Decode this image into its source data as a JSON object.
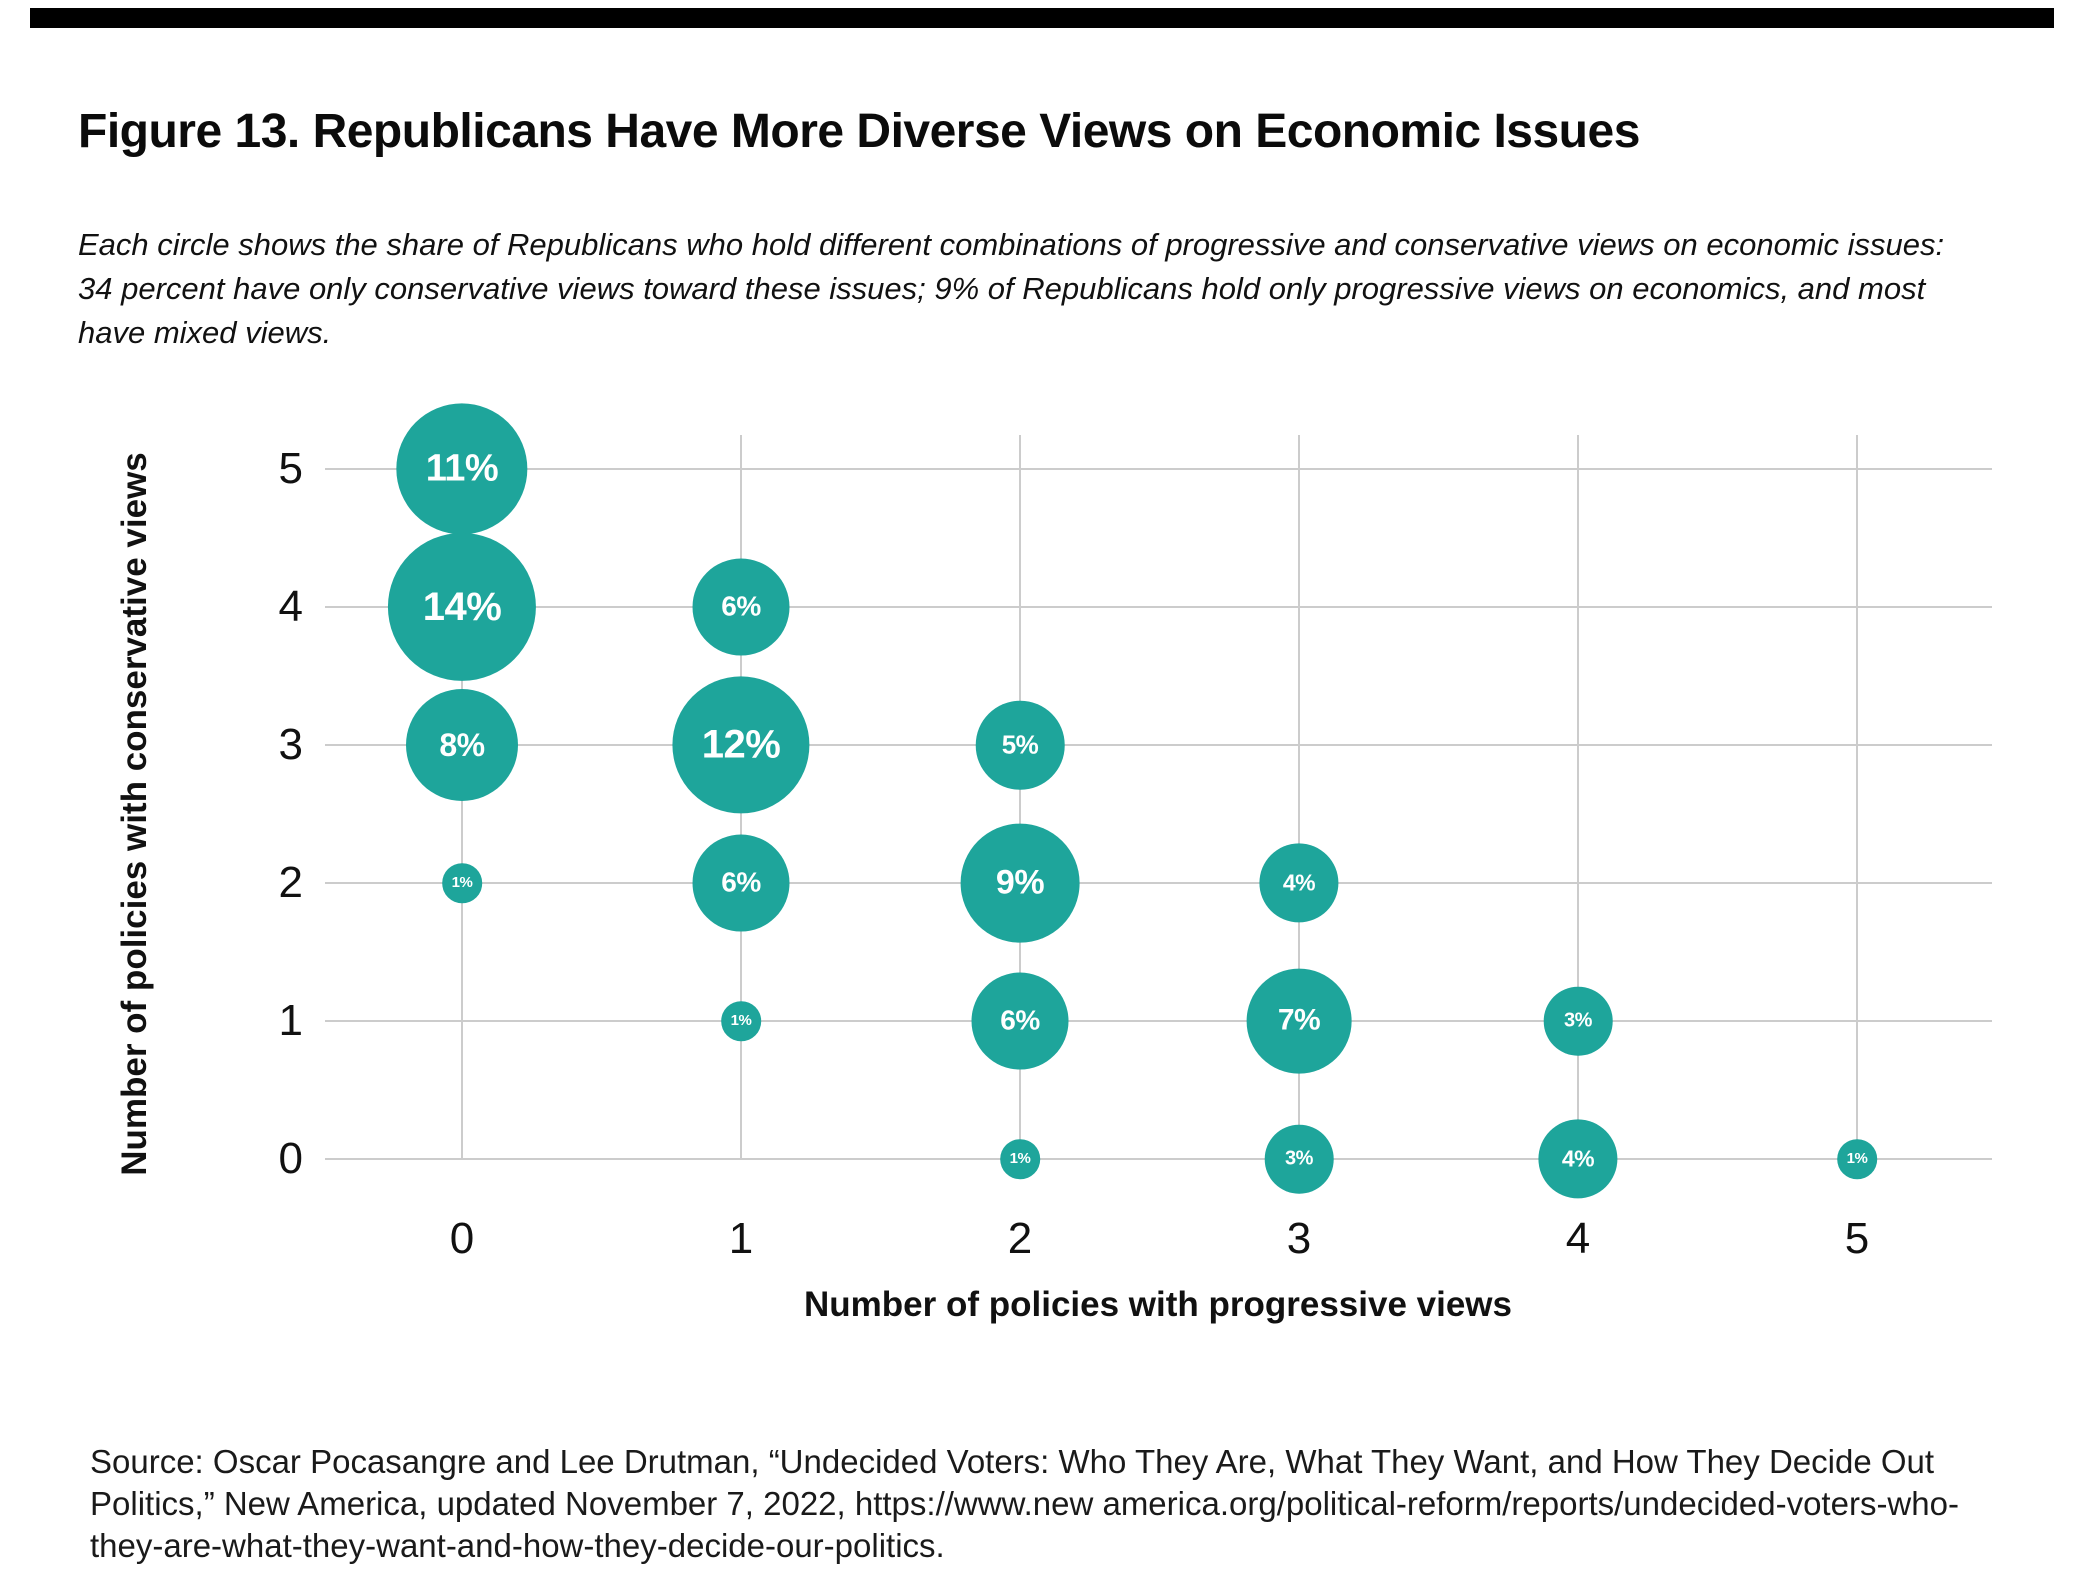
{
  "figure": {
    "title": "Figure 13. Republicans Have More Diverse Views on Economic Issues",
    "subtitle": "Each circle shows the share of Republicans who hold different combinations of progressive and conservative views on economic issues: 34 percent have only conservative views toward these issues; 9% of Republicans hold only progressive views on economics, and most have mixed views.",
    "source": "Source: Oscar Pocasangre and Lee Drutman, “Undecided Voters: Who They Are, What They Want, and How They Decide Out Politics,” New America, updated November 7, 2022, https://www.new america.org/political-reform/reports/undecided-voters-who-they-are-what-they-want-and-how-they-decide-our-politics."
  },
  "chart_data": {
    "type": "scatter",
    "subtype": "bubble",
    "xlabel": "Number of policies with progressive views",
    "ylabel": "Number of policies with conservative views",
    "x_ticks": [
      "0",
      "1",
      "2",
      "3",
      "4",
      "5"
    ],
    "y_ticks": [
      "0",
      "1",
      "2",
      "3",
      "4",
      "5"
    ],
    "xlim": [
      0,
      5
    ],
    "ylim": [
      0,
      5
    ],
    "grid": true,
    "legend": false,
    "bubble_color": "#1EA59B",
    "bubble_label_color": "#ffffff",
    "gridline_color": "#cccccc",
    "points": [
      {
        "x": 0,
        "y": 5,
        "value": 11,
        "label": "11%"
      },
      {
        "x": 0,
        "y": 4,
        "value": 14,
        "label": "14%"
      },
      {
        "x": 0,
        "y": 3,
        "value": 8,
        "label": "8%"
      },
      {
        "x": 0,
        "y": 2,
        "value": 1,
        "label": "1%"
      },
      {
        "x": 1,
        "y": 4,
        "value": 6,
        "label": "6%"
      },
      {
        "x": 1,
        "y": 3,
        "value": 12,
        "label": "12%"
      },
      {
        "x": 1,
        "y": 2,
        "value": 6,
        "label": "6%"
      },
      {
        "x": 1,
        "y": 1,
        "value": 1,
        "label": "1%"
      },
      {
        "x": 2,
        "y": 3,
        "value": 5,
        "label": "5%"
      },
      {
        "x": 2,
        "y": 2,
        "value": 9,
        "label": "9%"
      },
      {
        "x": 2,
        "y": 1,
        "value": 6,
        "label": "6%"
      },
      {
        "x": 2,
        "y": 0,
        "value": 1,
        "label": "1%"
      },
      {
        "x": 3,
        "y": 2,
        "value": 4,
        "label": "4%"
      },
      {
        "x": 3,
        "y": 1,
        "value": 7,
        "label": "7%"
      },
      {
        "x": 3,
        "y": 0,
        "value": 3,
        "label": "3%"
      },
      {
        "x": 4,
        "y": 1,
        "value": 3,
        "label": "3%"
      },
      {
        "x": 4,
        "y": 0,
        "value": 4,
        "label": "4%"
      },
      {
        "x": 5,
        "y": 0,
        "value": 1,
        "label": "1%"
      }
    ]
  }
}
